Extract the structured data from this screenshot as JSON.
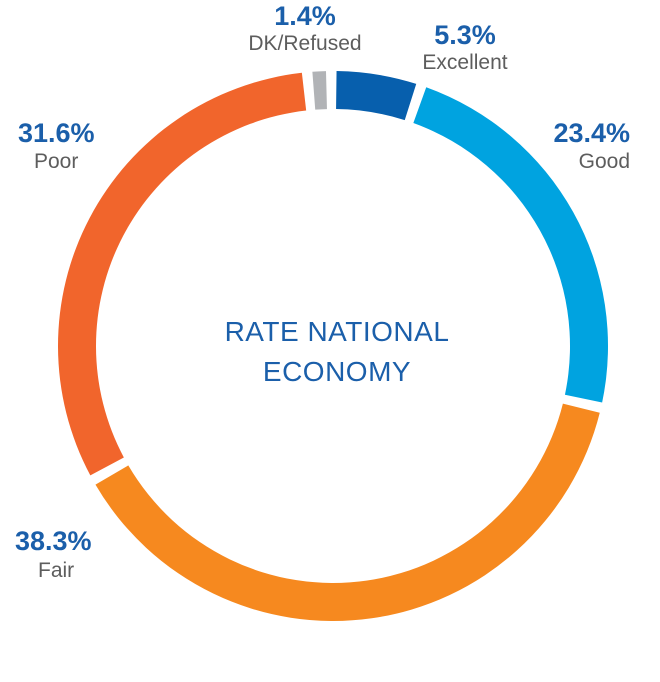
{
  "chart_data": {
    "type": "pie",
    "title_lines": [
      "RATE NATIONAL",
      "ECONOMY"
    ],
    "categories": [
      "DK/Refused",
      "Excellent",
      "Good",
      "Fair",
      "Poor"
    ],
    "values": [
      1.4,
      5.3,
      23.4,
      38.3,
      31.6
    ],
    "value_labels": [
      "1.4%",
      "5.3%",
      "23.4%",
      "38.3%",
      "31.6%"
    ],
    "colors": [
      "#b1b3b6",
      "#075fad",
      "#00a3e0",
      "#f6891f",
      "#f1652c"
    ],
    "label_color": "#1b5faa",
    "category_label_color": "#5d5d5d"
  }
}
